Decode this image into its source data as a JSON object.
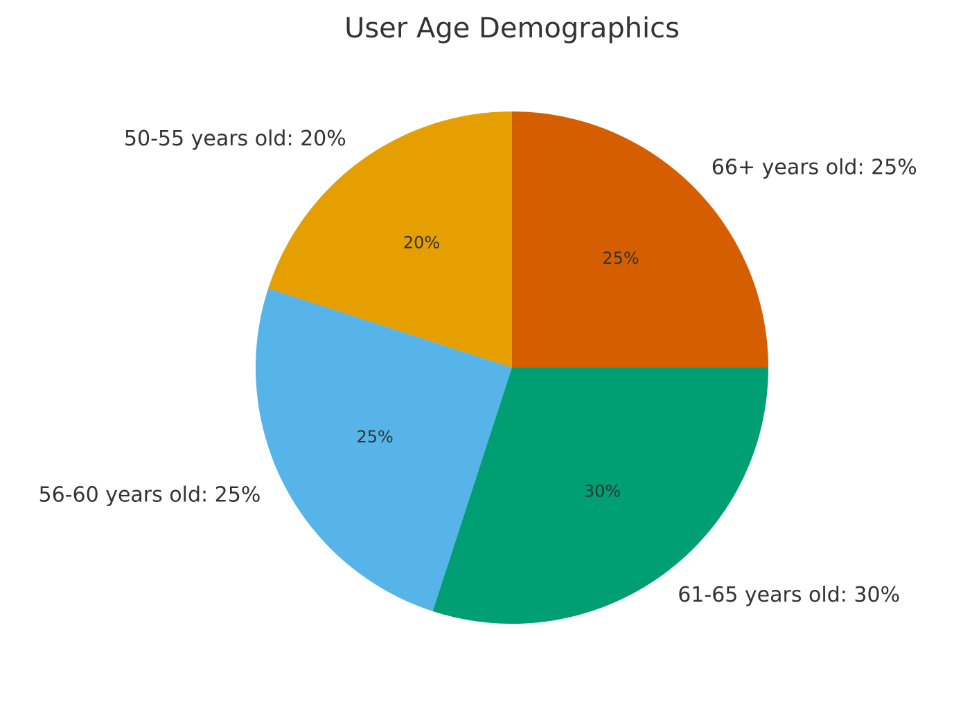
{
  "chart_data": {
    "type": "pie",
    "title": "User Age Demographics",
    "start_angle_deg": 90,
    "direction": "counterclockwise",
    "slices": [
      {
        "label": "50-55 years old",
        "value": 20,
        "outer_label": "50-55 years old: 20%",
        "pct_label": "20%",
        "color": "#E69F00"
      },
      {
        "label": "56-60 years old",
        "value": 25,
        "outer_label": "56-60 years old: 25%",
        "pct_label": "25%",
        "color": "#56B4E9"
      },
      {
        "label": "61-65 years old",
        "value": 30,
        "outer_label": "61-65 years old: 30%",
        "pct_label": "30%",
        "color": "#009E73"
      },
      {
        "label": "66+ years old",
        "value": 25,
        "outer_label": "66+ years old: 25%",
        "pct_label": "25%",
        "color": "#D55E00"
      }
    ]
  }
}
